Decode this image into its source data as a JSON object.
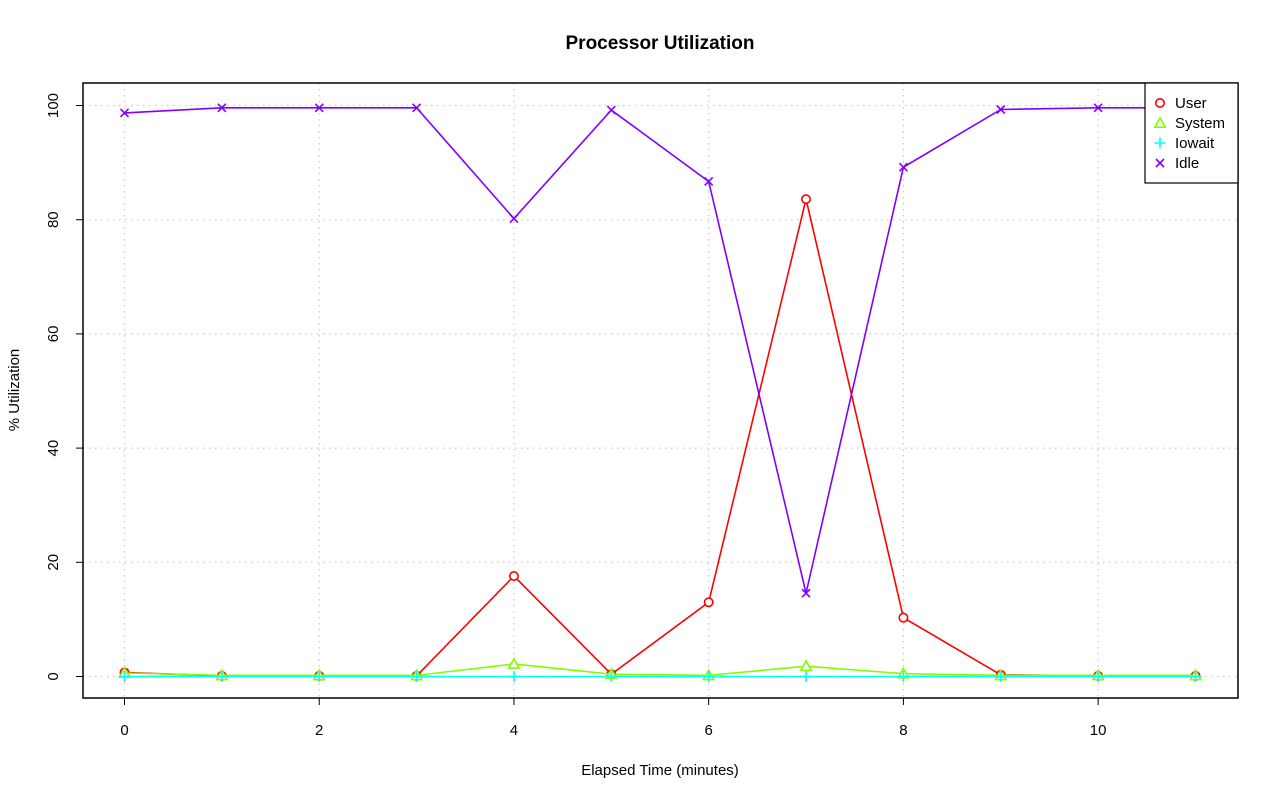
{
  "chart_data": {
    "type": "line",
    "title": "Processor Utilization",
    "xlabel": "Elapsed Time (minutes)",
    "ylabel": "% Utilization",
    "xlim": [
      0,
      11
    ],
    "ylim": [
      0,
      100
    ],
    "x_ticks": [
      0,
      2,
      4,
      6,
      8,
      10
    ],
    "y_ticks": [
      0,
      20,
      40,
      60,
      80,
      100
    ],
    "grid": true,
    "legend_position": "top-right",
    "x": [
      0,
      1,
      2,
      3,
      4,
      5,
      6,
      7,
      8,
      9,
      10,
      11
    ],
    "series": [
      {
        "name": "User",
        "color": "#ff0000",
        "marker": "circle",
        "values": [
          0.7,
          0.1,
          0.1,
          0.1,
          17.6,
          0.4,
          13.0,
          83.6,
          10.3,
          0.3,
          0.1,
          0.1
        ]
      },
      {
        "name": "System",
        "color": "#80ff00",
        "marker": "triangle",
        "values": [
          0.6,
          0.2,
          0.2,
          0.2,
          2.2,
          0.4,
          0.2,
          1.8,
          0.5,
          0.2,
          0.2,
          0.2
        ]
      },
      {
        "name": "Iowait",
        "color": "#00ffff",
        "marker": "plus",
        "values": [
          0.0,
          0.0,
          0.0,
          0.0,
          0.0,
          0.0,
          0.0,
          0.0,
          0.0,
          0.0,
          0.0,
          0.0
        ]
      },
      {
        "name": "Idle",
        "color": "#8000ff",
        "marker": "cross",
        "values": [
          98.7,
          99.6,
          99.6,
          99.6,
          80.2,
          99.2,
          86.7,
          14.6,
          89.2,
          99.3,
          99.6,
          99.6
        ]
      }
    ]
  }
}
